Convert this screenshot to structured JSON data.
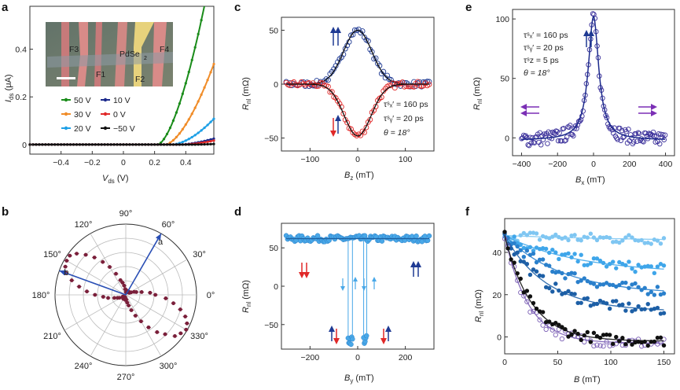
{
  "colors": {
    "blue": "#1f3a93",
    "red": "#e02828",
    "green": "#1a8c1a",
    "orange": "#f08c28",
    "cyan": "#1ea0e6",
    "darkblue": "#1c2a8c",
    "black": "#111111",
    "purple": "#7b2fb5",
    "maroon": "#7a1f3a",
    "lightblue": "#49a8e8"
  },
  "panels": {
    "a": {
      "label": "a",
      "xlabel": "V",
      "xlabel_sub": "ds",
      "xlabel_unit": " (V)",
      "ylabel": "I",
      "ylabel_sub": "ds",
      "ylabel_unit": " (μA)",
      "xticks": [
        "−0.4",
        "−0.2",
        "0",
        "0.2",
        "0.4"
      ],
      "yticks": [
        "0",
        "0.2",
        "0.4"
      ],
      "legend": [
        "50 V",
        "10 V",
        "30 V",
        "0 V",
        "20 V",
        "−50 V"
      ],
      "inset": {
        "labels": [
          "F3",
          "PdSe",
          "F4",
          "F1",
          "F2"
        ],
        "sub": "2"
      }
    },
    "b": {
      "label": "b",
      "angles": [
        "90°",
        "60°",
        "30°",
        "0°",
        "330°",
        "300°",
        "270°",
        "240°",
        "210°",
        "180°",
        "150°",
        "120°"
      ],
      "arrows": [
        "a",
        "b"
      ]
    },
    "c": {
      "label": "c",
      "xlabel": "B",
      "xlabel_sub": "z",
      "xlabel_unit": " (mT)",
      "ylabel": "R",
      "ylabel_sub": "nl",
      "ylabel_unit": " (mΩ)",
      "xticks": [
        "−100",
        "0",
        "100"
      ],
      "yticks": [
        "−50",
        "0",
        "50"
      ],
      "params": [
        "τˢₓ′ = 160 ps",
        "τˢᵧ′ = 20 ps",
        "θ = 18°"
      ]
    },
    "d": {
      "label": "d",
      "xlabel": "B",
      "xlabel_sub": "y",
      "xlabel_unit": " (mT)",
      "ylabel": "R",
      "ylabel_sub": "nl",
      "ylabel_unit": " (mΩ)",
      "xticks": [
        "−200",
        "0",
        "200"
      ],
      "yticks": [
        "−50",
        "0",
        "50"
      ]
    },
    "e": {
      "label": "e",
      "xlabel": "B",
      "xlabel_sub": "x",
      "xlabel_unit": " (mT)",
      "ylabel": "R",
      "ylabel_sub": "nl",
      "ylabel_unit": " (mΩ)",
      "xticks": [
        "−400",
        "−200",
        "0",
        "200",
        "400"
      ],
      "yticks": [
        "0",
        "50",
        "100"
      ],
      "params": [
        "τˢₓ′ = 160 ps",
        "τˢᵧ′ = 20 ps",
        "τˢz = 5 ps",
        "θ = 18°"
      ]
    },
    "f": {
      "label": "f",
      "xlabel": "B",
      "xlabel_unit": " (mT)",
      "ylabel": "R",
      "ylabel_sub": "nl",
      "ylabel_unit": " (mΩ)",
      "xticks": [
        "0",
        "50",
        "100",
        "150"
      ],
      "yticks": [
        "0",
        "20",
        "40"
      ]
    }
  },
  "chart_data": [
    {
      "panel": "a",
      "type": "line",
      "xlim": [
        -0.6,
        0.58
      ],
      "ylim": [
        -0.04,
        0.58
      ],
      "series": [
        {
          "name": "50 V",
          "color": "#1a8c1a",
          "onset": 0.22,
          "k": 4.0,
          "p": 1.6
        },
        {
          "name": "30 V",
          "color": "#f08c28",
          "onset": 0.27,
          "k": 2.2,
          "p": 1.6
        },
        {
          "name": "20 V",
          "color": "#1ea0e6",
          "onset": 0.31,
          "k": 1.0,
          "p": 1.7
        },
        {
          "name": "10 V",
          "color": "#1c2a8c",
          "onset": 0.36,
          "k": 0.28,
          "p": 1.6
        },
        {
          "name": "0 V",
          "color": "#e02828",
          "onset": 0.38,
          "k": 0.22,
          "p": 1.6
        },
        {
          "name": "−50 V",
          "color": "#111111",
          "onset": 0.45,
          "k": 0.05,
          "p": 1.5
        }
      ]
    },
    {
      "panel": "b",
      "type": "scatter",
      "polar": true,
      "r_max": 1.0,
      "lobe_angle_deg": 150,
      "lobe_power": 6,
      "arrow_a_deg": 60,
      "arrow_b_deg": 160
    },
    {
      "panel": "c",
      "type": "scatter",
      "xlim": [
        -160,
        160
      ],
      "ylim": [
        -62,
        62
      ],
      "series": [
        {
          "name": "up",
          "color": "#1f3a93",
          "amplitude": 50,
          "width": 42
        },
        {
          "name": "down",
          "color": "#e02828",
          "amplitude": -48,
          "width": 40
        }
      ]
    },
    {
      "panel": "d",
      "type": "scatter",
      "xlim": [
        -320,
        320
      ],
      "ylim": [
        -82,
        82
      ],
      "baseline": 62,
      "switch_low": -70,
      "switch_fields": [
        -40,
        -22,
        25,
        38
      ]
    },
    {
      "panel": "e",
      "type": "scatter",
      "xlim": [
        -450,
        450
      ],
      "ylim": [
        -15,
        108
      ],
      "peak": 102,
      "width": 35,
      "background": -2
    },
    {
      "panel": "f",
      "type": "scatter",
      "xlim": [
        0,
        160
      ],
      "ylim": [
        -8,
        56
      ],
      "series": [
        {
          "color": "#7fc6f2",
          "start": 48,
          "end": 45,
          "tau": 150
        },
        {
          "color": "#3fa6ea",
          "start": 48,
          "end": 30,
          "tau": 70
        },
        {
          "color": "#2a80cc",
          "start": 48,
          "end": 20,
          "tau": 55
        },
        {
          "color": "#1d5fa6",
          "start": 48,
          "end": 12,
          "tau": 40
        },
        {
          "color": "#7b5fb5",
          "start": 48,
          "end": -3,
          "tau": 22
        },
        {
          "color": "#111111",
          "start": 48,
          "end": -2,
          "tau": 25
        }
      ]
    }
  ]
}
